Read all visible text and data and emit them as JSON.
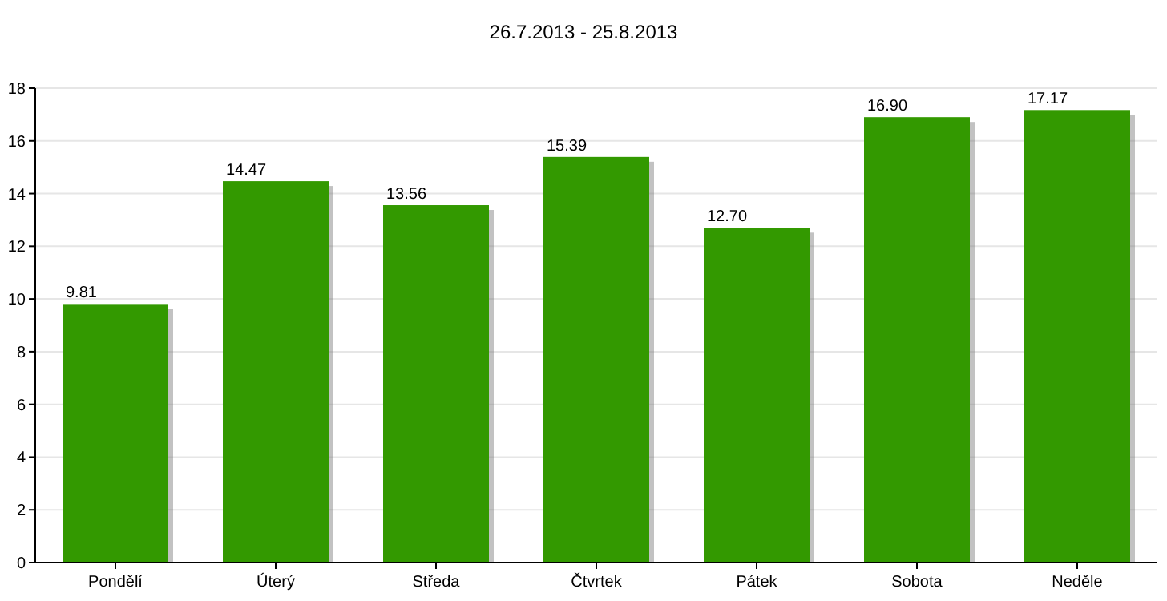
{
  "chart_data": {
    "type": "bar",
    "title": "26.7.2013 - 25.8.2013",
    "categories": [
      "Pondělí",
      "Úterý",
      "Středa",
      "Čtvrtek",
      "Pátek",
      "Sobota",
      "Neděle"
    ],
    "values": [
      9.81,
      14.47,
      13.56,
      15.39,
      12.7,
      16.9,
      17.17
    ],
    "value_labels": [
      "9.81",
      "14.47",
      "13.56",
      "15.39",
      "12.70",
      "16.90",
      "17.17"
    ],
    "color": "#339900",
    "ylim": [
      0,
      18
    ],
    "yticks": [
      0,
      2,
      4,
      6,
      8,
      10,
      12,
      14,
      16,
      18
    ],
    "grid": "y"
  }
}
